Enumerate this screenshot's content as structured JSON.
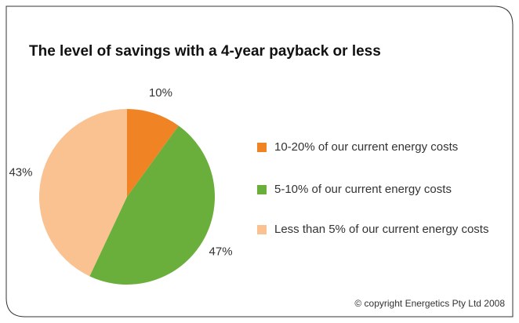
{
  "chart_data": {
    "type": "pie",
    "title": "The level of savings with a 4-year payback or less",
    "categories": [
      "10-20% of our current energy costs",
      "5-10% of our current energy costs",
      "Less than 5% of our current energy costs"
    ],
    "values": [
      10,
      47,
      43
    ],
    "value_labels": [
      "10%",
      "47%",
      "43%"
    ],
    "colors": [
      "#f08424",
      "#6aae3c",
      "#f9c290"
    ],
    "legend": "right",
    "annotation": "© copyright Energetics Pty Ltd 2008"
  }
}
